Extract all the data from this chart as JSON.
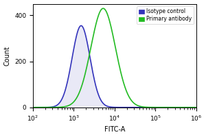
{
  "title": "",
  "xlabel": "FITC-A",
  "ylabel": "Count",
  "xlim_log": [
    2,
    6
  ],
  "ylim": [
    0,
    450
  ],
  "yticks": [
    0,
    200,
    400
  ],
  "bg_color": "#ffffff",
  "plot_bg_color": "#ffffff",
  "isotype_color": "#3333bb",
  "isotype_fill_color": "#aaaadd",
  "primary_color": "#22bb22",
  "primary_fill_color": "#aaddaa",
  "isotype_peak_log": 3.18,
  "isotype_peak_count": 355,
  "primary_peak_log": 3.72,
  "primary_peak_count": 430,
  "isotype_sigma_log": 0.22,
  "primary_sigma_log": 0.3,
  "legend_labels": [
    "Isotype control",
    "Primary antibody"
  ],
  "legend_colors_fill": [
    "#3333bb",
    "#22bb22"
  ],
  "legend_colors_edge": [
    "#3333bb",
    "#22bb22"
  ],
  "figsize": [
    3.0,
    2.0
  ],
  "dpi": 100,
  "n_points": 500
}
